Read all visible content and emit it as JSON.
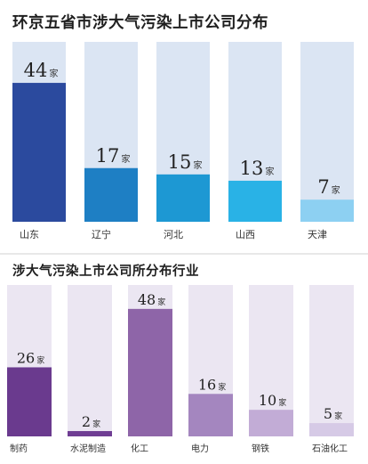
{
  "chart_data": [
    {
      "type": "bar",
      "title": "环京五省市涉大气污染上市公司分布",
      "unit": "家",
      "categories": [
        "山东",
        "辽宁",
        "河北",
        "山西",
        "天津"
      ],
      "values": [
        44,
        17,
        15,
        13,
        7
      ],
      "ylim": [
        0,
        57
      ],
      "colors": [
        "#2b4a9e",
        "#1e7fc4",
        "#1d98d3",
        "#29b2e6",
        "#8dd0f2"
      ],
      "track_color": "#dbe5f3",
      "grid": false
    },
    {
      "type": "bar",
      "title": "涉大气污染上市公司所分布行业",
      "unit": "家",
      "categories": [
        "制药",
        "水泥制造",
        "化工",
        "电力",
        "钢铁",
        "石油化工"
      ],
      "values": [
        26,
        2,
        48,
        16,
        10,
        5
      ],
      "ylim": [
        0,
        57
      ],
      "colors": [
        "#6a3a8e",
        "#6f3d93",
        "#8e65a8",
        "#a486bf",
        "#c2acd6",
        "#d6cae6"
      ],
      "track_color": "#ebe6f2",
      "grid": false
    }
  ]
}
